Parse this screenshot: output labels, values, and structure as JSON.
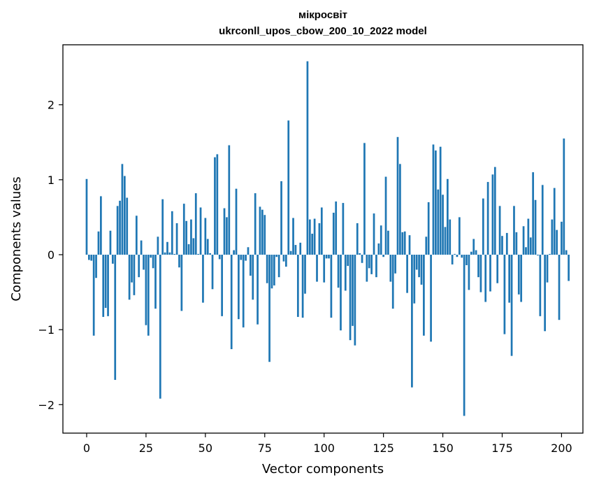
{
  "chart_data": {
    "type": "bar",
    "title_line1": "мікросвіт",
    "title_line2": "ukrconll_upos_cbow_200_10_2022 model",
    "xlabel": "Vector components",
    "ylabel": "Components values",
    "xlim": [
      -10,
      209
    ],
    "ylim": [
      -2.38,
      2.8
    ],
    "x_ticks": [
      0,
      25,
      50,
      75,
      100,
      125,
      150,
      175,
      200
    ],
    "y_ticks": [
      -2,
      -1,
      0,
      1,
      2
    ],
    "y_tick_labels": [
      "−2",
      "−1",
      "0",
      "1",
      "2"
    ],
    "bar_color": "#1f77b4",
    "values": [
      1.01,
      -0.07,
      -0.08,
      -1.08,
      -0.31,
      0.31,
      0.78,
      -0.83,
      -0.71,
      -0.82,
      0.32,
      -0.12,
      -1.67,
      0.65,
      0.72,
      1.21,
      1.05,
      0.76,
      -0.6,
      -0.37,
      -0.54,
      0.52,
      -0.3,
      0.19,
      -0.2,
      -0.94,
      -1.08,
      -0.04,
      -0.18,
      -0.72,
      0.24,
      -1.92,
      0.74,
      0.03,
      0.17,
      0.03,
      0.58,
      0.01,
      0.42,
      -0.17,
      -0.75,
      0.68,
      0.45,
      0.14,
      0.47,
      0.22,
      0.82,
      0.01,
      0.63,
      -0.64,
      0.49,
      0.21,
      0.02,
      -0.46,
      1.3,
      1.34,
      -0.06,
      -0.82,
      0.62,
      0.5,
      1.46,
      -1.26,
      0.06,
      0.88,
      -0.86,
      -0.07,
      -0.97,
      -0.08,
      0.1,
      -0.28,
      -0.6,
      0.82,
      -0.93,
      0.64,
      0.6,
      0.53,
      -0.38,
      -1.43,
      -0.45,
      -0.41,
      -0.03,
      -0.3,
      0.98,
      -0.09,
      -0.16,
      1.79,
      0.05,
      0.49,
      0.13,
      -0.83,
      0.16,
      -0.84,
      -0.52,
      2.58,
      0.47,
      0.28,
      0.48,
      -0.36,
      0.42,
      0.63,
      -0.37,
      -0.05,
      -0.05,
      -0.84,
      0.56,
      0.71,
      -0.44,
      -1.01,
      0.69,
      -0.48,
      -0.15,
      -1.14,
      -0.95,
      -1.21,
      0.42,
      0.02,
      -0.11,
      1.49,
      -0.36,
      -0.18,
      -0.26,
      0.55,
      -0.3,
      0.15,
      0.39,
      -0.03,
      1.04,
      0.32,
      -0.36,
      -0.72,
      -0.25,
      1.57,
      1.21,
      0.3,
      0.31,
      -0.51,
      0.26,
      -1.77,
      -0.65,
      -0.2,
      -0.3,
      -0.4,
      -1.08,
      0.24,
      0.7,
      -1.16,
      1.47,
      1.39,
      0.87,
      1.44,
      0.8,
      0.37,
      1.01,
      0.47,
      -0.13,
      0.01,
      -0.03,
      0.5,
      -0.04,
      -2.15,
      -0.14,
      -0.47,
      0.04,
      0.21,
      0.06,
      -0.3,
      -0.5,
      0.75,
      -0.63,
      0.97,
      -0.49,
      1.07,
      1.17,
      -0.38,
      0.65,
      0.25,
      -1.06,
      0.29,
      -0.64,
      -1.35,
      0.65,
      0.3,
      -0.53,
      -0.63,
      0.38,
      0.1,
      0.48,
      0.23,
      1.1,
      0.73,
      -0.01,
      -0.82,
      0.93,
      -1.02,
      -0.37,
      0.01,
      0.47,
      0.89,
      0.33,
      -0.87,
      0.44,
      1.55,
      0.06,
      -0.35
    ]
  }
}
